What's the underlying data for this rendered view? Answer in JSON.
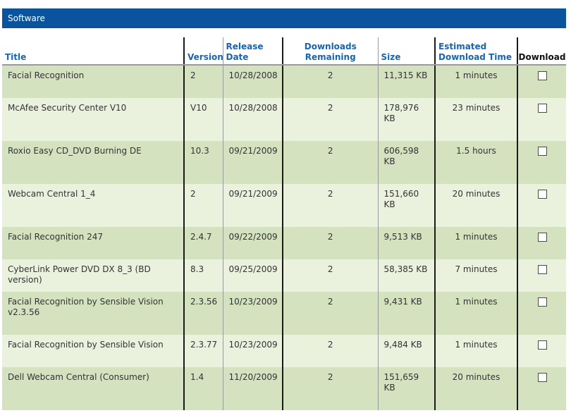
{
  "panel": {
    "title": "Software"
  },
  "columns": {
    "title": "Title",
    "version": "Version",
    "release_date": "Release Date",
    "downloads_remaining": "Downloads Remaining",
    "size": "Size",
    "estimated_time": "Estimated Download Time",
    "download": "Download"
  },
  "rows": [
    {
      "title": "Facial Recognition",
      "version": "2",
      "release_date": "10/28/2008",
      "downloads_remaining": "2",
      "size": "11,315 KB",
      "estimated_time": "1 minutes",
      "download_checked": false
    },
    {
      "title": "McAfee Security Center V10",
      "version": "V10",
      "release_date": "10/28/2008",
      "downloads_remaining": "2",
      "size": "178,976 KB",
      "estimated_time": "23 minutes",
      "download_checked": false
    },
    {
      "title": "Roxio Easy CD_DVD Burning DE",
      "version": "10.3",
      "release_date": "09/21/2009",
      "downloads_remaining": "2",
      "size": "606,598 KB",
      "estimated_time": "1.5 hours",
      "download_checked": false
    },
    {
      "title": "Webcam Central 1_4",
      "version": "2",
      "release_date": "09/21/2009",
      "downloads_remaining": "2",
      "size": "151,660 KB",
      "estimated_time": "20 minutes",
      "download_checked": false
    },
    {
      "title": "Facial Recognition 247",
      "version": "2.4.7",
      "release_date": "09/22/2009",
      "downloads_remaining": "2",
      "size": "9,513 KB",
      "estimated_time": "1 minutes",
      "download_checked": false
    },
    {
      "title": "CyberLink Power DVD DX 8_3 (BD version)",
      "version": "8.3",
      "release_date": "09/25/2009",
      "downloads_remaining": "2",
      "size": "58,385 KB",
      "estimated_time": "7 minutes",
      "download_checked": false
    },
    {
      "title": "Facial Recognition by Sensible Vision v2.3.56",
      "version": "2.3.56",
      "release_date": "10/23/2009",
      "downloads_remaining": "2",
      "size": "9,431 KB",
      "estimated_time": "1 minutes",
      "download_checked": false
    },
    {
      "title": "Facial Recognition by Sensible Vision",
      "version": "2.3.77",
      "release_date": "10/23/2009",
      "downloads_remaining": "2",
      "size": "9,484 KB",
      "estimated_time": "1 minutes",
      "download_checked": false
    },
    {
      "title": "Dell Webcam Central (Consumer)",
      "version": "1.4",
      "release_date": "11/20/2009",
      "downloads_remaining": "2",
      "size": "151,659 KB",
      "estimated_time": "20 minutes",
      "download_checked": false
    }
  ]
}
